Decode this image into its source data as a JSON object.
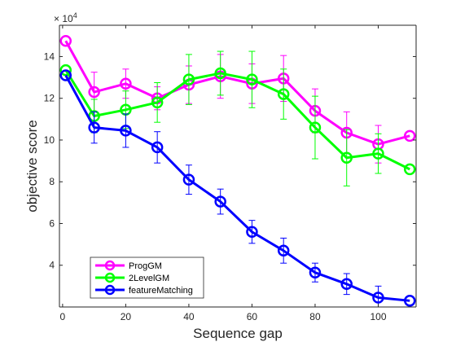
{
  "chart_data": {
    "type": "line",
    "title": "",
    "xlabel": "Sequence gap",
    "ylabel": "objective score",
    "y_exponent_label": "× 10",
    "y_exponent_power": "4",
    "xlim": [
      -1,
      112
    ],
    "ylim": [
      2.0,
      15.5
    ],
    "x_ticks": [
      0,
      20,
      40,
      60,
      80,
      100
    ],
    "x_tick_labels": [
      "0",
      "20",
      "40",
      "60",
      "80",
      "100"
    ],
    "y_ticks": [
      4,
      6,
      8,
      10,
      12,
      14
    ],
    "y_tick_labels": [
      "4",
      "6",
      "8",
      "10",
      "12",
      "14"
    ],
    "grid": false,
    "legend_position": "bottom-left",
    "x": [
      1,
      10,
      20,
      30,
      40,
      50,
      60,
      70,
      80,
      90,
      100,
      110
    ],
    "series": [
      {
        "name": "ProgGM",
        "color": "#ff00ff",
        "values": [
          14.75,
          12.3,
          12.7,
          12.0,
          12.65,
          13.05,
          12.7,
          12.95,
          11.4,
          10.35,
          9.8,
          10.2
        ],
        "err": [
          0.0,
          0.95,
          0.7,
          0.55,
          0.9,
          1.05,
          0.95,
          1.1,
          1.05,
          1.0,
          0.9,
          0.0
        ]
      },
      {
        "name": "2LevelGM",
        "color": "#00ff00",
        "values": [
          13.35,
          11.15,
          11.45,
          11.8,
          12.9,
          13.2,
          12.9,
          12.2,
          10.6,
          9.15,
          9.35,
          8.6
        ],
        "err": [
          0.0,
          0.8,
          0.9,
          0.95,
          1.2,
          1.05,
          1.35,
          1.2,
          1.5,
          1.35,
          0.95,
          0.0
        ]
      },
      {
        "name": "featureMatching",
        "color": "#0000ff",
        "values": [
          13.1,
          10.6,
          10.45,
          9.65,
          8.1,
          7.05,
          5.6,
          4.7,
          3.65,
          3.1,
          2.45,
          2.3
        ],
        "err": [
          0.0,
          0.75,
          0.8,
          0.75,
          0.7,
          0.6,
          0.55,
          0.6,
          0.45,
          0.5,
          0.55,
          0.0
        ]
      }
    ]
  }
}
